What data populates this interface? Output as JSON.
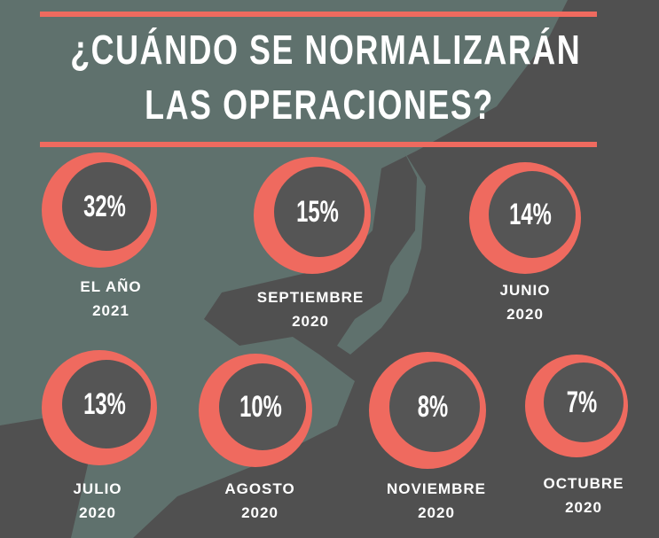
{
  "title": {
    "line1": "¿CUÁNDO SE NORMALIZARÁN",
    "line2": "LAS OPERACIONES?"
  },
  "colors": {
    "accent": "#ef6a5f",
    "background": "#5f716d",
    "land": "#505050",
    "circle": "#555555"
  },
  "items": [
    {
      "percent": "32%",
      "line1": "EL AÑO",
      "line2": "2021"
    },
    {
      "percent": "15%",
      "line1": "SEPTIEMBRE",
      "line2": "2020"
    },
    {
      "percent": "14%",
      "line1": "JUNIO",
      "line2": "2020"
    },
    {
      "percent": "13%",
      "line1": "JULIO",
      "line2": "2020"
    },
    {
      "percent": "10%",
      "line1": "AGOSTO",
      "line2": "2020"
    },
    {
      "percent": "8%",
      "line1": "NOVIEMBRE",
      "line2": "2020"
    },
    {
      "percent": "7%",
      "line1": "OCTUBRE",
      "line2": "2020"
    }
  ]
}
